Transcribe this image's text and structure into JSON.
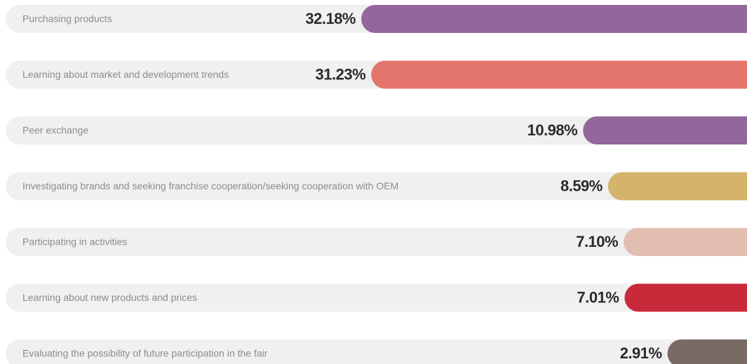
{
  "chart_data": {
    "type": "bar",
    "categories": [
      "Purchasing products",
      "Learning about market and development trends",
      "Peer exchange",
      "Investigating brands and seeking franchise cooperation/seeking cooperation with OEM",
      "Participating in activities",
      "Learning about new products and prices",
      "Evaluating the possibility of future participation in the fair"
    ],
    "values": [
      32.18,
      31.23,
      10.98,
      8.59,
      7.1,
      7.01,
      2.91
    ],
    "value_labels": [
      "32.18%",
      "31.23%",
      "10.98%",
      "8.59%",
      "7.10%",
      "7.01%",
      "2.91%"
    ],
    "colors": [
      "#94679c",
      "#e4756c",
      "#94679c",
      "#d4b46a",
      "#e2beb1",
      "#c92a3a",
      "#7a6a66"
    ]
  }
}
